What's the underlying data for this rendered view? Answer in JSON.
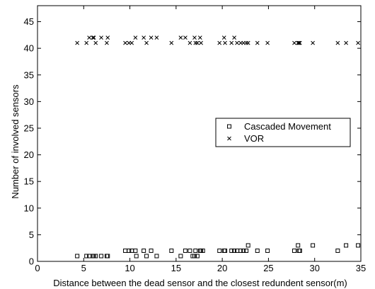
{
  "chart_data": {
    "type": "scatter",
    "title": "",
    "xlabel": "Distance between the dead sensor and the closest redundent sensor(m)",
    "ylabel": "Number of involved sensors",
    "xlim": [
      0,
      35
    ],
    "ylim": [
      0,
      48
    ],
    "xticks": [
      0,
      5,
      10,
      15,
      20,
      25,
      30,
      35
    ],
    "yticks": [
      0,
      5,
      10,
      15,
      20,
      25,
      30,
      35,
      40,
      45
    ],
    "grid": false,
    "legend_position": "center-right",
    "series": [
      {
        "name": "Cascaded Movement",
        "marker": "square",
        "x": [
          4.3,
          5.3,
          5.6,
          6.0,
          6.1,
          6.3,
          6.9,
          7.5,
          7.6,
          9.5,
          9.9,
          10.2,
          10.6,
          10.7,
          11.5,
          11.8,
          12.3,
          12.9,
          14.5,
          15.5,
          16.0,
          16.5,
          16.8,
          17.0,
          17.1,
          17.3,
          17.6,
          17.7,
          17.9,
          19.7,
          20.2,
          20.3,
          21.0,
          21.3,
          21.6,
          22.0,
          22.3,
          22.6,
          22.8,
          23.8,
          24.9,
          27.8,
          28.2,
          28.3,
          28.4,
          29.8,
          32.5,
          33.4,
          34.7
        ],
        "y": [
          1,
          1,
          1,
          1,
          1,
          1,
          1,
          1,
          1,
          2,
          2,
          2,
          2,
          1,
          2,
          1,
          2,
          1,
          2,
          1,
          2,
          2,
          1,
          1,
          2,
          1,
          2,
          2,
          2,
          2,
          2,
          2,
          2,
          2,
          2,
          2,
          2,
          2,
          3,
          2,
          2,
          2,
          3,
          2,
          2,
          3,
          2,
          3,
          3
        ]
      },
      {
        "name": "VOR",
        "marker": "x",
        "x": [
          4.3,
          5.3,
          5.6,
          6.0,
          6.1,
          6.3,
          6.9,
          7.5,
          7.6,
          9.5,
          9.9,
          10.2,
          10.6,
          11.5,
          11.8,
          12.3,
          12.9,
          14.5,
          15.5,
          16.0,
          16.5,
          17.0,
          17.1,
          17.3,
          17.6,
          17.7,
          19.7,
          20.2,
          20.3,
          21.0,
          21.3,
          21.6,
          22.0,
          22.3,
          22.6,
          22.8,
          23.8,
          24.9,
          27.8,
          28.2,
          28.3,
          28.4,
          29.8,
          32.5,
          33.4,
          34.7
        ],
        "y": [
          41,
          41,
          42,
          42,
          42,
          41,
          42,
          41,
          42,
          41,
          41,
          41,
          42,
          42,
          41,
          42,
          42,
          41,
          42,
          42,
          41,
          42,
          41,
          41,
          42,
          41,
          41,
          42,
          41,
          41,
          42,
          41,
          41,
          41,
          41,
          41,
          41,
          41,
          41,
          41,
          41,
          41,
          41,
          41,
          41,
          41
        ]
      }
    ]
  }
}
